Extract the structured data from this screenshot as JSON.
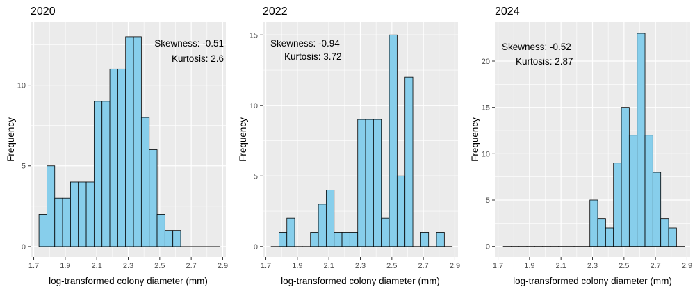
{
  "colors": {
    "panel_background": "#ebebeb",
    "grid_major": "#ffffff",
    "bar_fill": "#87ceeb",
    "bar_outline": "#000000",
    "tick_text": "#4d4d4d",
    "tick_mark": "#333333"
  },
  "chart_data": [
    {
      "type": "bar",
      "title": "2020",
      "xlabel": "log-transformed colony diameter (mm)",
      "ylabel": "Frequency",
      "xlim": [
        1.68,
        2.92
      ],
      "ylim": [
        -0.65,
        13.9
      ],
      "x_ticks": [
        "1.7",
        "1.9",
        "2.1",
        "2.3",
        "2.5",
        "2.7",
        "2.9"
      ],
      "x_tick_values": [
        1.7,
        1.9,
        2.1,
        2.3,
        2.5,
        2.7,
        2.9
      ],
      "y_ticks": [
        "0",
        "5",
        "10"
      ],
      "y_tick_values": [
        0,
        5,
        10
      ],
      "bin_start": 1.7333,
      "bin_width": 0.05,
      "values": [
        2,
        5,
        3,
        3,
        4,
        4,
        4,
        9,
        9,
        11,
        11,
        13,
        13,
        8,
        6,
        2,
        1,
        1,
        0,
        0,
        0,
        0,
        0
      ],
      "grid": true,
      "annotations": [
        "Skewness: -0.51",
        "Kurtosis: 2.6"
      ],
      "annotation_align": "right"
    },
    {
      "type": "bar",
      "title": "2022",
      "xlabel": "log-transformed colony diameter (mm)",
      "ylabel": "Frequency",
      "xlim": [
        1.68,
        2.92
      ],
      "ylim": [
        -0.75,
        15.9
      ],
      "x_ticks": [
        "1.7",
        "1.9",
        "2.1",
        "2.3",
        "2.5",
        "2.7",
        "2.9"
      ],
      "x_tick_values": [
        1.7,
        1.9,
        2.1,
        2.3,
        2.5,
        2.7,
        2.9
      ],
      "y_ticks": [
        "0",
        "5",
        "10",
        "15"
      ],
      "y_tick_values": [
        0,
        5,
        10,
        15
      ],
      "bin_start": 1.7333,
      "bin_width": 0.05,
      "values": [
        0,
        1,
        2,
        0,
        0,
        1,
        3,
        4,
        1,
        1,
        1,
        9,
        9,
        9,
        2,
        15,
        5,
        12,
        0,
        1,
        0,
        1,
        0
      ],
      "grid": true,
      "annotations": [
        "Skewness: -0.94",
        "Kurtosis: 3.72"
      ],
      "annotation_align": "left"
    },
    {
      "type": "bar",
      "title": "2024",
      "xlabel": "log-transformed colony diameter (mm)",
      "ylabel": "Frequency",
      "xlim": [
        1.68,
        2.92
      ],
      "ylim": [
        -1.15,
        24.2
      ],
      "x_ticks": [
        "1.7",
        "1.9",
        "2.1",
        "2.3",
        "2.5",
        "2.7",
        "2.9"
      ],
      "x_tick_values": [
        1.7,
        1.9,
        2.1,
        2.3,
        2.5,
        2.7,
        2.9
      ],
      "y_ticks": [
        "0",
        "5",
        "10",
        "15",
        "20"
      ],
      "y_tick_values": [
        0,
        5,
        10,
        15,
        20
      ],
      "bin_start": 1.7333,
      "bin_width": 0.05,
      "values": [
        0,
        0,
        0,
        0,
        0,
        0,
        0,
        0,
        0,
        0,
        0,
        5,
        3,
        2,
        9,
        15,
        12,
        23,
        12,
        8,
        3,
        2,
        0
      ],
      "grid": true,
      "annotations": [
        "Skewness: -0.52",
        "Kurtosis: 2.87"
      ],
      "annotation_align": "left"
    }
  ]
}
